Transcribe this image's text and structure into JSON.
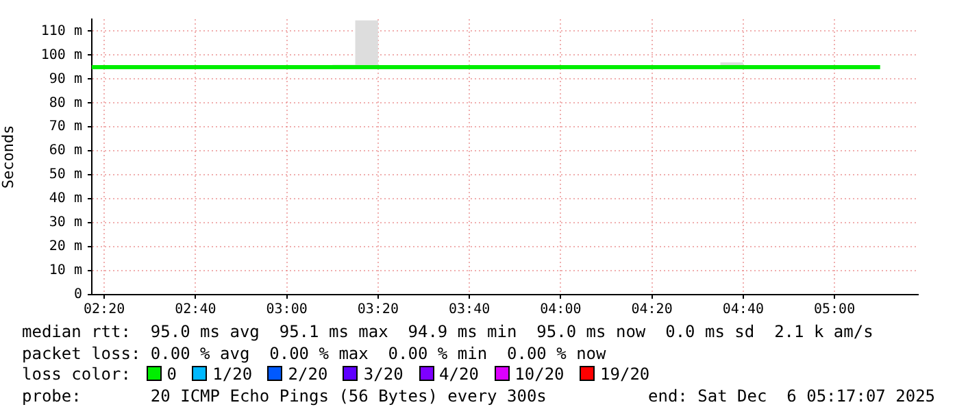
{
  "chart_data": {
    "type": "step",
    "ylabel": "Seconds",
    "legend_title": "loss color:",
    "legend": "bottom",
    "grid": true,
    "x": [
      2.288,
      3.1667,
      3.25,
      3.3333,
      3.5,
      3.5833,
      4.5833,
      4.6667,
      5.1667
    ],
    "xlim": [
      2.288,
      5.305
    ],
    "xticks": [
      {
        "value": 2.3333,
        "label": "02:20"
      },
      {
        "value": 2.6667,
        "label": "02:40"
      },
      {
        "value": 3,
        "label": "03:00"
      },
      {
        "value": 3.3333,
        "label": "03:20"
      },
      {
        "value": 3.6667,
        "label": "03:40"
      },
      {
        "value": 4,
        "label": "04:00"
      },
      {
        "value": 4.3333,
        "label": "04:20"
      },
      {
        "value": 4.6667,
        "label": "04:40"
      },
      {
        "value": 5,
        "label": "05:00"
      }
    ],
    "ylim": [
      0,
      115
    ],
    "yticks": [
      0,
      {
        "value": 10,
        "label": "10 m"
      },
      {
        "value": 20,
        "label": "20 m"
      },
      {
        "value": 30,
        "label": "30 m"
      },
      {
        "value": 40,
        "label": "40 m"
      },
      {
        "value": 50,
        "label": "50 m"
      },
      {
        "value": 60,
        "label": "60 m"
      },
      {
        "value": 70,
        "label": "70 m"
      },
      {
        "value": 80,
        "label": "80 m"
      },
      {
        "value": 90,
        "label": "90 m"
      },
      {
        "value": 100,
        "label": "100 m"
      },
      {
        "value": 110,
        "label": "110 m"
      }
    ],
    "series": [
      {
        "name": "0",
        "color": "#00ee00",
        "values": [
          95,
          95,
          95,
          95,
          95,
          95,
          95,
          95,
          95
        ],
        "lower": [
          95,
          95,
          95,
          95,
          95,
          95,
          95,
          95,
          95
        ],
        "upper": [
          95,
          96,
          114.5,
          95,
          95.5,
          95,
          97,
          95,
          95
        ]
      },
      {
        "name": "1/20",
        "color": "#00b8ff",
        "values": [
          null,
          null,
          null,
          null,
          null,
          null,
          null,
          null,
          null
        ]
      },
      {
        "name": "2/20",
        "color": "#0059ff",
        "values": [
          null,
          null,
          null,
          null,
          null,
          null,
          null,
          null,
          null
        ]
      },
      {
        "name": "3/20",
        "color": "#5e00ff",
        "values": [
          null,
          null,
          null,
          null,
          null,
          null,
          null,
          null,
          null
        ]
      },
      {
        "name": "4/20",
        "color": "#7e00ff",
        "values": [
          null,
          null,
          null,
          null,
          null,
          null,
          null,
          null,
          null
        ]
      },
      {
        "name": "10/20",
        "color": "#dd00ff",
        "values": [
          null,
          null,
          null,
          null,
          null,
          null,
          null,
          null,
          null
        ]
      },
      {
        "name": "19/20",
        "color": "#ff0000",
        "values": [
          null,
          null,
          null,
          null,
          null,
          null,
          null,
          null,
          null
        ]
      }
    ],
    "annotations": [
      "median rtt:  95.0 ms avg  95.1 ms max  94.9 ms min  95.0 ms now  0.0 ms sd  2.1 k am/s",
      "packet loss: 0.00 % avg  0.00 % max  0.00 % min  0.00 % now",
      "probe:       20 ICMP Echo Pings (56 Bytes) every 300s",
      "end: Sat Dec  6 05:17:07 2025"
    ]
  }
}
